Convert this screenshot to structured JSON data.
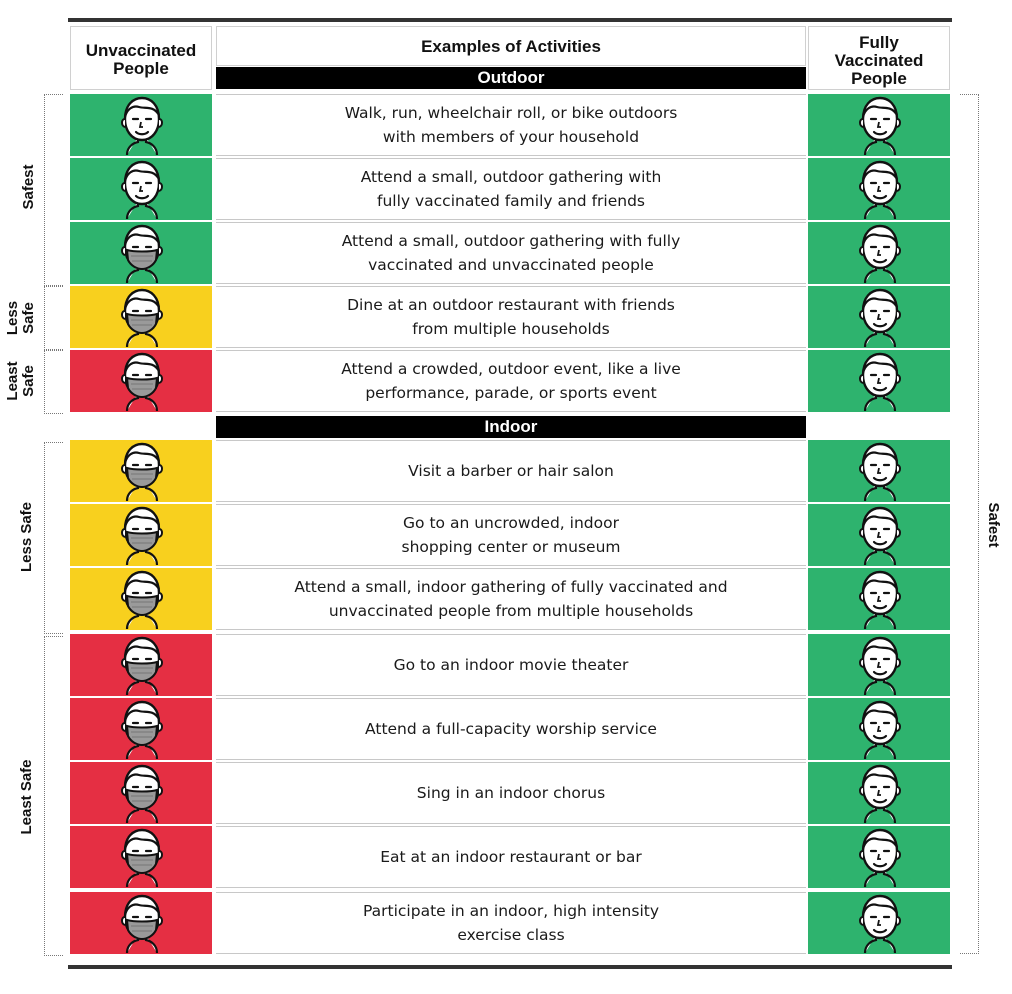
{
  "colors": {
    "green": "#2eb36e",
    "yellow": "#f8d01e",
    "red": "#e52f43",
    "mask": "#9a9a9a",
    "header_bar": "#000000"
  },
  "headers": {
    "unvaccinated": "Unvaccinated\nPeople",
    "activities": "Examples of Activities",
    "vaccinated": "Fully\nVaccinated\nPeople"
  },
  "sections": {
    "outdoor": "Outdoor",
    "indoor": "Indoor"
  },
  "risk_labels": {
    "outdoor_safest": "Safest",
    "outdoor_less_safe": "Less\nSafe",
    "outdoor_least_safe": "Least\nSafe",
    "indoor_less_safe": "Less Safe",
    "indoor_least_safe": "Least Safe",
    "vaccinated_safest": "Safest"
  },
  "rows": [
    {
      "activity": "Walk, run, wheelchair roll, or bike outdoors\nwith members of your household",
      "unvax_color": "green",
      "unvax_mask": false,
      "vax_color": "green"
    },
    {
      "activity": "Attend a small, outdoor gathering with\nfully vaccinated family and friends",
      "unvax_color": "green",
      "unvax_mask": false,
      "vax_color": "green"
    },
    {
      "activity": "Attend a small, outdoor gathering with fully\nvaccinated and unvaccinated people",
      "unvax_color": "green",
      "unvax_mask": true,
      "vax_color": "green"
    },
    {
      "activity": "Dine at an outdoor restaurant with friends\nfrom multiple households",
      "unvax_color": "yellow",
      "unvax_mask": true,
      "vax_color": "green"
    },
    {
      "activity": "Attend a crowded, outdoor event, like a live\nperformance, parade, or sports event",
      "unvax_color": "red",
      "unvax_mask": true,
      "vax_color": "green"
    },
    {
      "activity": "Visit a barber or hair salon",
      "unvax_color": "yellow",
      "unvax_mask": true,
      "vax_color": "green"
    },
    {
      "activity": "Go to an uncrowded, indoor\nshopping center or museum",
      "unvax_color": "yellow",
      "unvax_mask": true,
      "vax_color": "green"
    },
    {
      "activity": "Attend a small, indoor gathering of fully vaccinated and\nunvaccinated people from multiple households",
      "unvax_color": "yellow",
      "unvax_mask": true,
      "vax_color": "green"
    },
    {
      "activity": "Go to an indoor movie theater",
      "unvax_color": "red",
      "unvax_mask": true,
      "vax_color": "green"
    },
    {
      "activity": "Attend a full-capacity worship service",
      "unvax_color": "red",
      "unvax_mask": true,
      "vax_color": "green"
    },
    {
      "activity": "Sing in an indoor chorus",
      "unvax_color": "red",
      "unvax_mask": true,
      "vax_color": "green"
    },
    {
      "activity": "Eat at an indoor restaurant or bar",
      "unvax_color": "red",
      "unvax_mask": true,
      "vax_color": "green"
    },
    {
      "activity": "Participate in an indoor, high intensity\nexercise class",
      "unvax_color": "red",
      "unvax_mask": true,
      "vax_color": "green"
    }
  ]
}
